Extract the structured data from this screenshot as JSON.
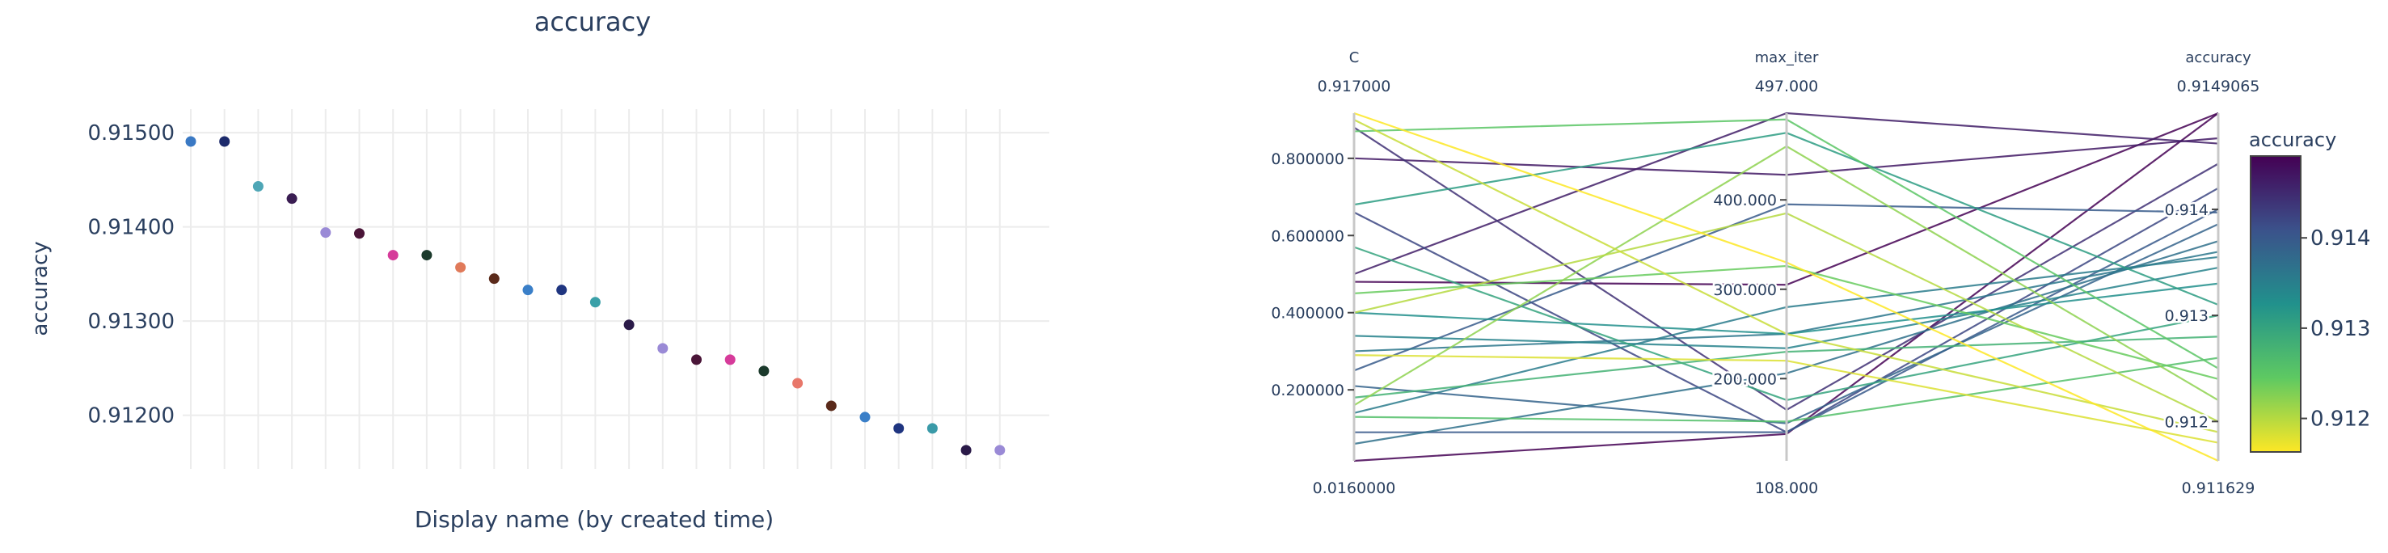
{
  "chart_data": [
    {
      "type": "scatter",
      "title": "accuracy",
      "xlabel": "Display name (by created time)",
      "ylabel": "accuracy",
      "ylim": [
        0.91143,
        0.91525
      ],
      "yticks": [
        "0.91200",
        "0.91300",
        "0.91400",
        "0.91500"
      ],
      "ytick_values": [
        0.912,
        0.913,
        0.914,
        0.915
      ],
      "grid": true,
      "x_tick_labels_visible": false,
      "series": [
        {
          "values": [
            0.9149065,
            0.9149065,
            0.91443,
            0.9143,
            0.91394,
            0.91393,
            0.9137,
            0.9137,
            0.91357,
            0.91345,
            0.91333,
            0.91333,
            0.9132,
            0.91296,
            0.91271,
            0.91259,
            0.91259,
            0.91247,
            0.91234,
            0.9121,
            0.91198,
            0.91186,
            0.91186,
            0.911629,
            0.911629
          ],
          "colors": [
            "#3a79c4",
            "#1c2a6b",
            "#4ea6b6",
            "#3a1d52",
            "#9a8ad6",
            "#4a1538",
            "#d63b9a",
            "#1b3a2c",
            "#e07a5a",
            "#5a2a1a",
            "#3a7fc8",
            "#1f3580",
            "#3aa0a8",
            "#2a1a48",
            "#9a8ad6",
            "#4a1538",
            "#d63b9a",
            "#1b3a2c",
            "#e8776a",
            "#5a2a1a",
            "#3a7fc8",
            "#1f3580",
            "#3a9aa8",
            "#2a1a48",
            "#9a8ad6"
          ]
        }
      ]
    },
    {
      "type": "parallel_coordinates",
      "axes": [
        {
          "label": "C",
          "max_label": "0.917000",
          "min_label": "0.0160000",
          "min": 0.016,
          "max": 0.917,
          "ticks": [
            "0.200000",
            "0.400000",
            "0.600000",
            "0.800000"
          ],
          "tick_values": [
            0.2,
            0.4,
            0.6,
            0.8
          ]
        },
        {
          "label": "max_iter",
          "max_label": "497.000",
          "min_label": "108.000",
          "min": 108,
          "max": 497,
          "ticks": [
            "200.000",
            "300.000",
            "400.000"
          ],
          "tick_values": [
            200,
            300,
            400
          ]
        },
        {
          "label": "accuracy",
          "max_label": "0.9149065",
          "min_label": "0.911629",
          "min": 0.911629,
          "max": 0.9149065,
          "ticks": [
            "0.912",
            "0.913",
            "0.914"
          ],
          "tick_values": [
            0.912,
            0.913,
            0.914
          ]
        }
      ],
      "colorbar": {
        "title": "accuracy",
        "ticks": [
          "0.912",
          "0.913",
          "0.914"
        ],
        "tick_values": [
          0.912,
          0.913,
          0.914
        ],
        "colors": [
          "#440154",
          "#3b528b",
          "#21918c",
          "#5ec962",
          "#fde725"
        ]
      },
      "lines": [
        [
          0.016,
          138,
          0.9149065
        ],
        [
          0.48,
          305,
          0.9149065
        ],
        [
          0.5,
          497,
          0.91462
        ],
        [
          0.8,
          428,
          0.91467
        ],
        [
          0.88,
          165,
          0.91443
        ],
        [
          0.66,
          140,
          0.9142
        ],
        [
          0.09,
          140,
          0.914
        ],
        [
          0.25,
          395,
          0.91397
        ],
        [
          0.21,
          150,
          0.91386
        ],
        [
          0.06,
          206,
          0.9137
        ],
        [
          0.3,
          250,
          0.9136
        ],
        [
          0.14,
          280,
          0.91355
        ],
        [
          0.34,
          234,
          0.91345
        ],
        [
          0.4,
          250,
          0.9133
        ],
        [
          0.68,
          475,
          0.9131
        ],
        [
          0.57,
          176,
          0.913
        ],
        [
          0.18,
          230,
          0.9128
        ],
        [
          0.13,
          152,
          0.9126
        ],
        [
          0.87,
          490,
          0.9125
        ],
        [
          0.45,
          326,
          0.9124
        ],
        [
          0.16,
          460,
          0.9122
        ],
        [
          0.4,
          385,
          0.912
        ],
        [
          0.9,
          250,
          0.9119
        ],
        [
          0.29,
          220,
          0.9118
        ],
        [
          0.917,
          330,
          0.911629
        ]
      ]
    }
  ]
}
